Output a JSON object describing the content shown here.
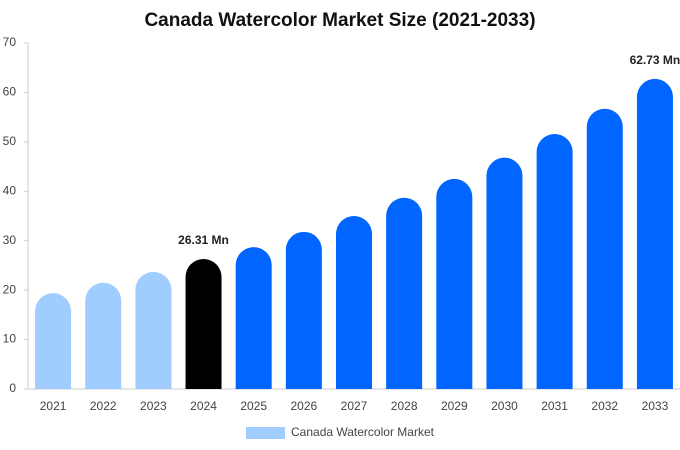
{
  "chart_data": {
    "type": "bar",
    "title": "Canada Watercolor Market Size (2021-2033)",
    "categories": [
      "2021",
      "2022",
      "2023",
      "2024",
      "2025",
      "2026",
      "2027",
      "2028",
      "2029",
      "2030",
      "2031",
      "2032",
      "2033"
    ],
    "series": [
      {
        "name": "Canada Watercolor Market",
        "color": "#a0cdfd",
        "values": [
          19.4,
          21.5,
          23.7,
          26.31,
          28.7,
          31.8,
          35.0,
          38.7,
          42.5,
          46.8,
          51.6,
          56.7,
          62.73
        ],
        "colors": [
          "#a0cdfd",
          "#a0cdfd",
          "#a0cdfd",
          "#000000",
          "#0066ff",
          "#0066ff",
          "#0066ff",
          "#0066ff",
          "#0066ff",
          "#0066ff",
          "#0066ff",
          "#0066ff",
          "#0066ff"
        ],
        "value_labels": [
          null,
          null,
          null,
          "26.31 Mn",
          null,
          null,
          null,
          null,
          null,
          null,
          null,
          null,
          "62.73 Mn"
        ]
      }
    ],
    "ylim": [
      0,
      70
    ],
    "yticks": [
      0,
      10,
      20,
      30,
      40,
      50,
      60,
      70
    ]
  }
}
